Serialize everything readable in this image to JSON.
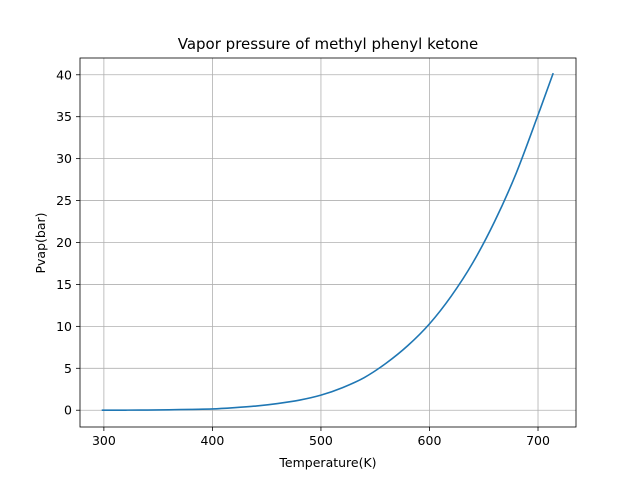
{
  "chart_data": {
    "type": "line",
    "title": "Vapor pressure of methyl phenyl ketone",
    "xlabel": "Temperature(K)",
    "ylabel": "Pvap(bar)",
    "xlim": [
      278,
      735
    ],
    "ylim": [
      -2,
      42
    ],
    "xticks": [
      300,
      400,
      500,
      600,
      700
    ],
    "yticks": [
      0,
      5,
      10,
      15,
      20,
      25,
      30,
      35,
      40
    ],
    "grid": true,
    "series": [
      {
        "color": "#1f77b4",
        "x": [
          298,
          320,
          340,
          360,
          380,
          400,
          420,
          440,
          460,
          480,
          500,
          520,
          540,
          560,
          580,
          600,
          620,
          640,
          660,
          680,
          700,
          714
        ],
        "y": [
          0.0,
          0.01,
          0.02,
          0.05,
          0.1,
          0.15,
          0.3,
          0.5,
          0.8,
          1.2,
          1.8,
          2.7,
          3.9,
          5.6,
          7.7,
          10.3,
          13.6,
          17.6,
          22.5,
          28.3,
          35.2,
          40.2
        ]
      }
    ]
  }
}
